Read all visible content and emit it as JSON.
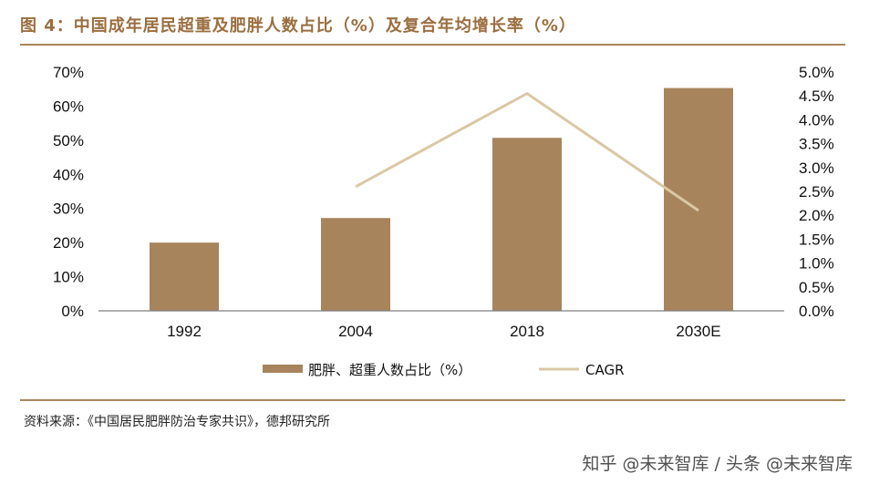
{
  "title": "图 4：中国成年居民超重及肥胖人数占比（%）及复合年均增长率（%）",
  "source": "资料来源：《中国居民肥胖防治专家共识》，德邦研究所",
  "watermark": "知乎 @未来智库 / 头条 @未来智库",
  "colors": {
    "bar": "#a8845c",
    "line": "#d9c8a4",
    "axis": "#7f7f7f",
    "title": "#9b6e3f"
  },
  "chart_data": {
    "type": "bar",
    "categories": [
      "1992",
      "2004",
      "2018",
      "2030E"
    ],
    "series": [
      {
        "name": "肥胖、超重人数占比（%）",
        "type": "bar",
        "axis": "left",
        "values": [
          20,
          27.2,
          50.7,
          65.3
        ]
      },
      {
        "name": "CAGR",
        "type": "line",
        "axis": "right",
        "values": [
          null,
          2.6,
          4.55,
          2.1
        ]
      }
    ],
    "ylim_left": [
      0,
      70
    ],
    "yticks_left": [
      "0%",
      "10%",
      "20%",
      "30%",
      "40%",
      "50%",
      "60%",
      "70%"
    ],
    "ylim_right": [
      0,
      5.0
    ],
    "yticks_right": [
      "0.0%",
      "0.5%",
      "1.0%",
      "1.5%",
      "2.0%",
      "2.5%",
      "3.0%",
      "3.5%",
      "4.0%",
      "4.5%",
      "5.0%"
    ],
    "legend_position": "bottom",
    "grid": false
  }
}
